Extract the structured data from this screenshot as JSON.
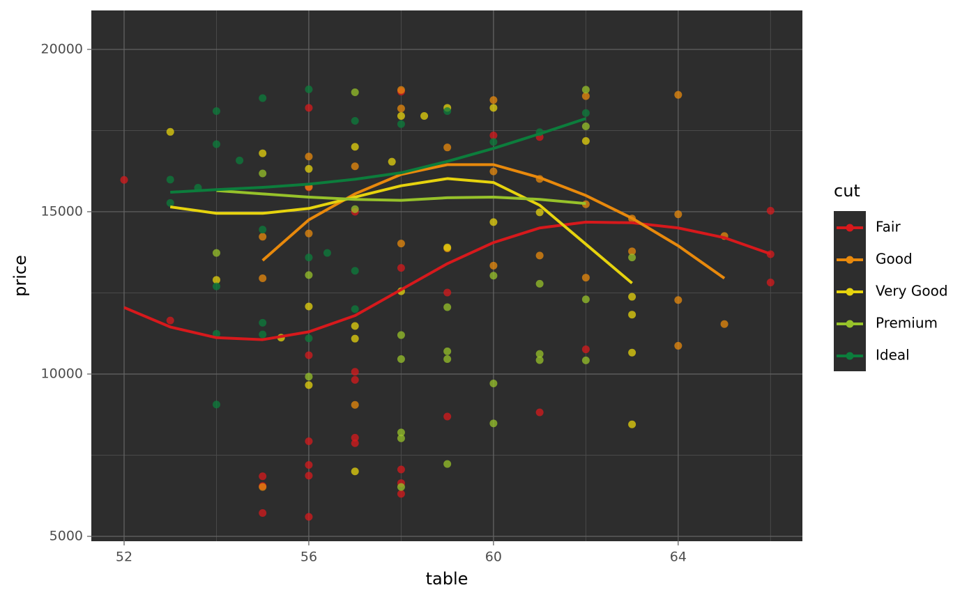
{
  "chart_data": {
    "type": "scatter",
    "x_label": "table",
    "y_label": "price",
    "legend_title": "cut",
    "xlim": [
      51.29,
      66.69
    ],
    "ylim": [
      4850,
      21200
    ],
    "xticks": [
      52,
      56,
      60,
      64
    ],
    "yticks": [
      5000,
      10000,
      15000,
      20000
    ],
    "x_minor_grid": [
      54,
      58,
      62,
      66
    ],
    "y_minor_grid": [
      7500,
      12500,
      17500
    ],
    "grid": true,
    "legend": "right",
    "series": [
      {
        "name": "Fair",
        "color": "#d7191c",
        "x": [
          52,
          53,
          55,
          55,
          55,
          56,
          56,
          56,
          56,
          56,
          56,
          56,
          57,
          57,
          57,
          57,
          57,
          58,
          58,
          58,
          58,
          58,
          59,
          59,
          60,
          61,
          61,
          62,
          66,
          66,
          66
        ],
        "values": [
          15980,
          11650,
          6850,
          6550,
          5720,
          5600,
          6870,
          7200,
          7930,
          10580,
          15750,
          18200,
          10070,
          9820,
          8040,
          7870,
          15000,
          13270,
          7060,
          6640,
          6310,
          18700,
          12510,
          8690,
          17350,
          8820,
          17300,
          10760,
          15030,
          13690,
          12820
        ],
        "smooth": {
          "x": [
            52,
            53,
            54,
            55,
            56,
            57,
            58,
            59,
            60,
            61,
            62,
            63,
            64,
            65,
            66
          ],
          "values": [
            12050,
            11450,
            11120,
            11060,
            11300,
            11800,
            12600,
            13400,
            14050,
            14500,
            14680,
            14660,
            14500,
            14200,
            13700
          ]
        }
      },
      {
        "name": "Good",
        "color": "#e8890c",
        "x": [
          55,
          55,
          55,
          56,
          56,
          56,
          57,
          57,
          58,
          58,
          58,
          59,
          59,
          60,
          60,
          60,
          61,
          61,
          62,
          62,
          62,
          63,
          63,
          64,
          64,
          64,
          64,
          65,
          65
        ],
        "values": [
          14230,
          12950,
          6520,
          15770,
          16700,
          14330,
          9050,
          16400,
          18750,
          14020,
          18180,
          16980,
          13870,
          16240,
          13340,
          18440,
          13650,
          16010,
          18560,
          15230,
          12970,
          13780,
          14790,
          18600,
          14920,
          12280,
          10870,
          14250,
          11540
        ],
        "smooth": {
          "x": [
            55,
            56,
            57,
            58,
            59,
            60,
            61,
            62,
            63,
            64,
            65
          ],
          "values": [
            13500,
            14750,
            15550,
            16150,
            16450,
            16450,
            16050,
            15500,
            14800,
            13950,
            12950
          ]
        }
      },
      {
        "name": "Very Good",
        "color": "#e6d30e",
        "x": [
          53,
          54,
          55,
          55.4,
          56,
          56,
          56,
          57,
          57,
          57,
          57,
          57.8,
          58,
          58,
          58.5,
          59,
          59,
          60,
          60,
          61,
          62,
          63,
          63,
          63,
          63
        ],
        "values": [
          17460,
          12900,
          16800,
          11120,
          12080,
          9660,
          16320,
          11480,
          11090,
          7000,
          17000,
          16540,
          17950,
          12550,
          17950,
          18200,
          13900,
          14680,
          18200,
          14980,
          17180,
          12380,
          11830,
          10660,
          8450
        ],
        "smooth": {
          "x": [
            53,
            54,
            55,
            56,
            57,
            58,
            59,
            60,
            61,
            62,
            63
          ],
          "values": [
            15150,
            14950,
            14950,
            15100,
            15450,
            15800,
            16020,
            15900,
            15200,
            14000,
            12800
          ]
        }
      },
      {
        "name": "Premium",
        "color": "#97c22a",
        "x": [
          54,
          55,
          56,
          56,
          57,
          57,
          58,
          58,
          58,
          58,
          58,
          59,
          59,
          59,
          59,
          60,
          60,
          60,
          61,
          61,
          61,
          62,
          62,
          62,
          62,
          63
        ],
        "values": [
          13730,
          16180,
          9920,
          13050,
          18680,
          15080,
          10460,
          8200,
          8020,
          6520,
          11200,
          10460,
          10700,
          7230,
          12060,
          9710,
          8480,
          13030,
          10620,
          10430,
          12780,
          10420,
          12300,
          18760,
          17630,
          13590
        ],
        "smooth": {
          "x": [
            54,
            55,
            56,
            57,
            58,
            59,
            60,
            61,
            62
          ],
          "values": [
            15650,
            15550,
            15450,
            15380,
            15350,
            15430,
            15450,
            15380,
            15250
          ]
        }
      },
      {
        "name": "Ideal",
        "color": "#0c7d3c",
        "x": [
          53,
          53,
          53.6,
          54,
          54,
          54,
          54,
          54,
          54.5,
          55,
          55,
          55,
          55,
          56,
          56,
          56,
          56.4,
          57,
          57,
          57,
          58,
          59,
          60,
          61,
          62
        ],
        "values": [
          15990,
          15270,
          15740,
          18100,
          17080,
          11240,
          9060,
          12700,
          16580,
          18500,
          14450,
          11580,
          11220,
          18770,
          13590,
          11100,
          13730,
          17800,
          13180,
          12000,
          17700,
          18100,
          17150,
          17450,
          18040
        ],
        "smooth": {
          "x": [
            53,
            54,
            55,
            56,
            57,
            58,
            59,
            60,
            61,
            62
          ],
          "values": [
            15600,
            15680,
            15750,
            15850,
            16000,
            16200,
            16550,
            16950,
            17400,
            17870
          ]
        }
      }
    ]
  }
}
